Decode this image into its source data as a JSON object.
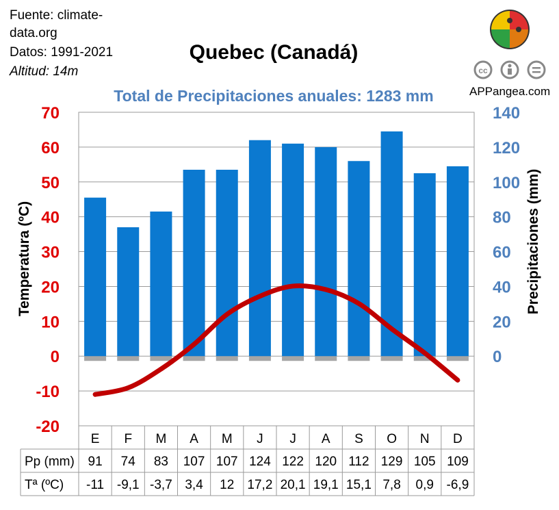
{
  "source": {
    "line1": "Fuente: climate-",
    "line2": "data.org",
    "line3": "Datos: 1991-2021",
    "line4": "Altitud: 14m"
  },
  "brand": "APPangea.com",
  "colors": {
    "bars": "#0b79d0",
    "temperature_line": "#c00000",
    "left_axis": "#e00000",
    "right_axis": "#4f81bd",
    "subtitle": "#4f81bd"
  },
  "icons": [
    "puzzle-logo-icon",
    "cc-icon",
    "attribution-icon",
    "no-derivatives-icon"
  ],
  "table": {
    "pp_label": "Pp (mm)",
    "t_label": "Tª (ºC)"
  },
  "chart_data": {
    "type": "bar",
    "title": "Quebec (Canadá)",
    "subtitle": "Total de Precipitaciones anuales: 1283 mm",
    "categories": [
      "E",
      "F",
      "M",
      "A",
      "M",
      "J",
      "J",
      "A",
      "S",
      "O",
      "N",
      "D"
    ],
    "series": [
      {
        "name": "Pp (mm)",
        "type": "bar",
        "axis": "right",
        "values": [
          91,
          74,
          83,
          107,
          107,
          124,
          122,
          120,
          112,
          129,
          105,
          109
        ]
      },
      {
        "name": "Tª (ºC)",
        "type": "line",
        "axis": "left",
        "values": [
          -11,
          -9.1,
          -3.7,
          3.4,
          12,
          17.2,
          20.1,
          19.1,
          15.1,
          7.8,
          0.9,
          -6.9
        ]
      }
    ],
    "pp_text": [
      "91",
      "74",
      "83",
      "107",
      "107",
      "124",
      "122",
      "120",
      "112",
      "129",
      "105",
      "109"
    ],
    "t_text": [
      "-11",
      "-9,1",
      "-3,7",
      "3,4",
      "12",
      "17,2",
      "20,1",
      "19,1",
      "15,1",
      "7,8",
      "0,9",
      "-6,9"
    ],
    "ylabel_left": "Temperatura (ºC)",
    "ylabel_right": "Precipitaciones (mm)",
    "ylim_left": [
      -20,
      70
    ],
    "yticks_left": [
      "70",
      "60",
      "50",
      "40",
      "30",
      "20",
      "10",
      "0",
      "-10",
      "-20"
    ],
    "ylim_right": [
      0,
      140
    ],
    "yticks_right": [
      "140",
      "120",
      "100",
      "80",
      "60",
      "40",
      "20",
      "0"
    ],
    "grid": true
  }
}
